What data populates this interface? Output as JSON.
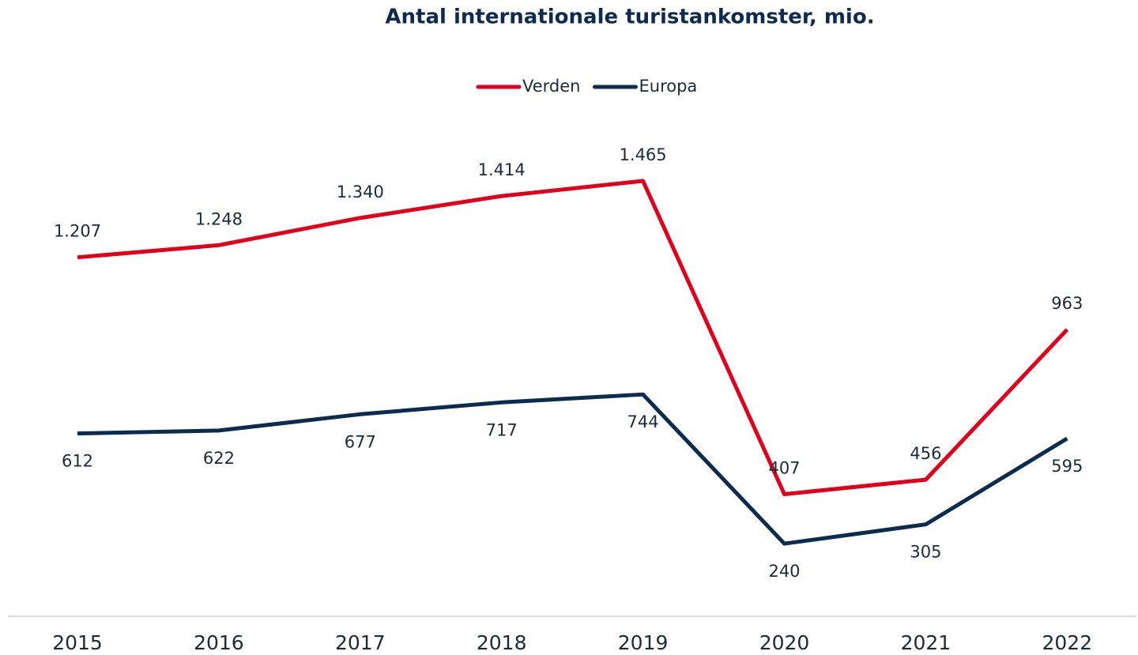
{
  "chart_data": {
    "type": "line",
    "title": "Antal internationale turistankomster, mio.",
    "categories": [
      "2015",
      "2016",
      "2017",
      "2018",
      "2019",
      "2020",
      "2021",
      "2022"
    ],
    "series": [
      {
        "name": "Verden",
        "color": "#e3001b",
        "values": [
          1207,
          1248,
          1340,
          1414,
          1465,
          407,
          456,
          963
        ],
        "value_labels": [
          "1.207",
          "1.248",
          "1.340",
          "1.414",
          "1.465",
          "407",
          "456",
          "963"
        ]
      },
      {
        "name": "Europa",
        "color": "#0b2c4e",
        "values": [
          612,
          622,
          677,
          717,
          744,
          240,
          305,
          595
        ]
      }
    ],
    "legend": "top"
  }
}
